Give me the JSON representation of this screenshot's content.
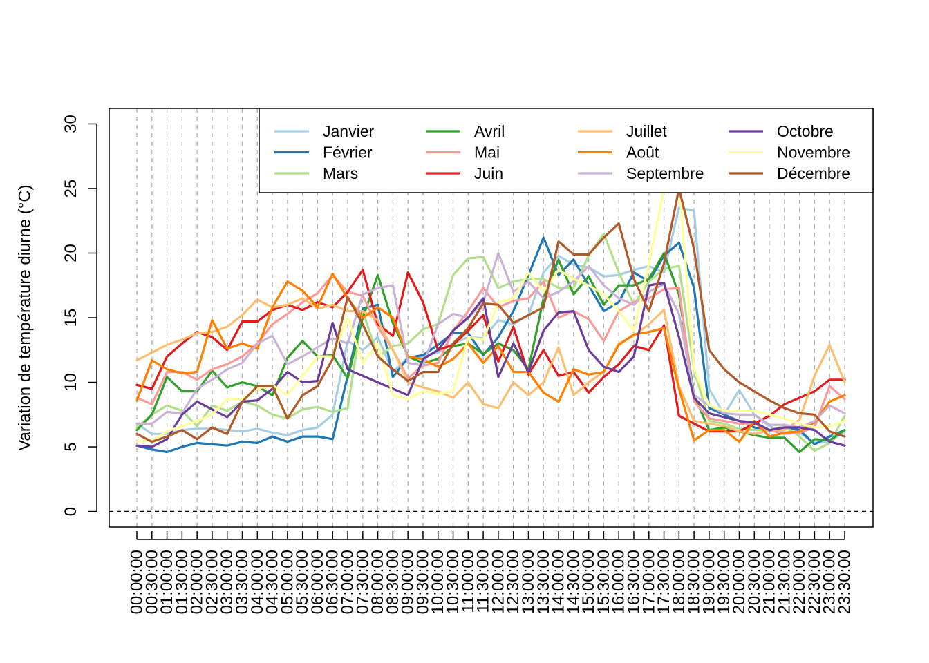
{
  "chart_data": {
    "type": "line",
    "ylabel": "Variation de température diurne (°C)",
    "xlabel": "",
    "ylim": [
      -1.2,
      31.2
    ],
    "yticks": [
      0,
      5,
      10,
      15,
      20,
      25,
      30
    ],
    "reference_line": 0,
    "grid": "vertical-dashed",
    "legend_position": "top-right",
    "categories": [
      "00:00:00",
      "00:30:00",
      "01:00:00",
      "01:30:00",
      "02:00:00",
      "02:30:00",
      "03:00:00",
      "03:30:00",
      "04:00:00",
      "04:30:00",
      "05:00:00",
      "05:30:00",
      "06:00:00",
      "06:30:00",
      "07:00:00",
      "07:30:00",
      "08:00:00",
      "08:30:00",
      "09:00:00",
      "09:30:00",
      "10:00:00",
      "10:30:00",
      "11:00:00",
      "11:30:00",
      "12:00:00",
      "12:30:00",
      "13:00:00",
      "13:30:00",
      "14:00:00",
      "14:30:00",
      "15:00:00",
      "15:30:00",
      "16:00:00",
      "16:30:00",
      "17:00:00",
      "17:30:00",
      "18:00:00",
      "18:30:00",
      "19:00:00",
      "19:30:00",
      "20:00:00",
      "20:30:00",
      "21:00:00",
      "21:30:00",
      "22:00:00",
      "22:30:00",
      "23:00:00",
      "23:30:00"
    ],
    "series": [
      {
        "name": "Janvier",
        "color": "#A6CEE3",
        "values": [
          6.8,
          6.0,
          6.0,
          6.3,
          6.4,
          6.4,
          6.3,
          6.2,
          6.4,
          6.1,
          5.9,
          6.3,
          6.5,
          7.5,
          13.2,
          12.5,
          13.5,
          10.8,
          11.9,
          12.0,
          12.3,
          13.0,
          13.5,
          13.4,
          14.8,
          14.5,
          15.2,
          18.5,
          19.8,
          19.1,
          18.9,
          18.2,
          18.3,
          18.7,
          19.0,
          18.5,
          23.5,
          23.3,
          9.5,
          7.5,
          9.4,
          7.5,
          6.6,
          6.1,
          6.1,
          5.3,
          5.4,
          6.2
        ]
      },
      {
        "name": "Février",
        "color": "#1F78B4",
        "values": [
          5.1,
          4.8,
          4.6,
          5.0,
          5.3,
          5.2,
          5.1,
          5.4,
          5.3,
          5.8,
          5.4,
          5.8,
          5.8,
          5.6,
          10.5,
          15.7,
          16.0,
          10.4,
          11.9,
          12.1,
          12.9,
          13.8,
          13.8,
          12.1,
          13.5,
          15.5,
          18.3,
          21.2,
          18.3,
          19.5,
          17.5,
          15.5,
          16.2,
          18.5,
          17.8,
          19.8,
          20.8,
          17.3,
          8.0,
          7.5,
          7.0,
          6.5,
          6.2,
          6.5,
          6.3,
          5.2,
          5.8,
          6.3
        ]
      },
      {
        "name": "Mars",
        "color": "#B2DF8A",
        "values": [
          6.5,
          7.5,
          8.2,
          7.8,
          6.6,
          8.2,
          7.8,
          8.5,
          8.2,
          7.5,
          7.2,
          7.9,
          8.1,
          7.7,
          8.0,
          15.5,
          12.0,
          12.8,
          13.0,
          14.1,
          14.5,
          18.3,
          19.6,
          19.7,
          17.3,
          17.8,
          18.0,
          18.0,
          17.3,
          17.3,
          19.8,
          21.5,
          18.5,
          16.0,
          17.8,
          18.8,
          19.0,
          11.0,
          7.0,
          6.8,
          6.4,
          6.3,
          6.3,
          6.6,
          5.8,
          4.7,
          5.3,
          7.4
        ]
      },
      {
        "name": "Avril",
        "color": "#33A02C",
        "values": [
          6.3,
          7.5,
          10.4,
          9.3,
          9.3,
          10.9,
          9.6,
          10.0,
          9.7,
          9.0,
          11.9,
          13.2,
          12.0,
          12.1,
          10.3,
          15.0,
          18.3,
          14.6,
          12.0,
          11.5,
          11.8,
          12.8,
          13.0,
          12.2,
          13.0,
          12.5,
          11.0,
          16.5,
          19.5,
          16.8,
          18.2,
          16.0,
          17.5,
          17.5,
          18.0,
          20.0,
          16.8,
          9.0,
          6.3,
          6.5,
          6.2,
          5.9,
          5.7,
          5.7,
          4.6,
          5.6,
          5.5,
          6.3
        ]
      },
      {
        "name": "Mai",
        "color": "#FB9A99",
        "values": [
          8.8,
          8.3,
          10.8,
          10.8,
          10.2,
          11.0,
          11.4,
          12.0,
          13.0,
          14.5,
          15.3,
          16.2,
          16.9,
          18.3,
          17.0,
          16.7,
          14.3,
          12.5,
          10.3,
          11.3,
          11.5,
          14.0,
          15.5,
          17.3,
          15.8,
          16.3,
          16.5,
          17.8,
          15.0,
          15.5,
          14.9,
          13.2,
          15.5,
          16.2,
          16.5,
          17.2,
          17.3,
          8.5,
          7.2,
          7.0,
          6.8,
          6.8,
          6.3,
          6.0,
          6.1,
          6.5,
          9.7,
          8.7
        ]
      },
      {
        "name": "Juin",
        "color": "#E31A1C",
        "values": [
          9.8,
          9.5,
          12.0,
          13.0,
          13.9,
          13.5,
          12.5,
          14.7,
          14.7,
          15.6,
          16.0,
          15.6,
          16.2,
          15.8,
          17.0,
          18.7,
          14.5,
          13.6,
          18.5,
          16.2,
          12.5,
          12.9,
          14.0,
          15.2,
          11.6,
          14.3,
          10.6,
          12.5,
          10.5,
          10.8,
          9.2,
          10.4,
          11.4,
          12.8,
          12.5,
          14.4,
          7.4,
          6.8,
          6.2,
          6.2,
          6.2,
          6.8,
          7.4,
          8.3,
          8.8,
          9.3,
          10.2,
          10.2
        ]
      },
      {
        "name": "Juillet",
        "color": "#FDBF6F",
        "values": [
          11.7,
          12.3,
          12.9,
          13.3,
          13.8,
          13.9,
          14.3,
          15.2,
          16.4,
          15.8,
          16.0,
          16.5,
          15.7,
          16.0,
          15.5,
          15.5,
          14.8,
          12.5,
          10.0,
          9.6,
          9.3,
          8.8,
          10.0,
          8.3,
          8.0,
          10.0,
          9.0,
          10.0,
          12.7,
          9.0,
          10.0,
          10.8,
          13.0,
          13.6,
          14.5,
          15.6,
          9.7,
          7.0,
          6.8,
          6.6,
          6.2,
          6.0,
          6.3,
          6.3,
          7.1,
          10.5,
          12.9,
          10.0
        ]
      },
      {
        "name": "Août",
        "color": "#FF7F00",
        "values": [
          8.6,
          11.7,
          11.0,
          10.7,
          10.8,
          14.8,
          12.6,
          13.0,
          12.6,
          15.8,
          17.8,
          17.1,
          15.8,
          18.4,
          16.5,
          15.0,
          15.8,
          15.0,
          12.0,
          11.8,
          11.2,
          11.8,
          13.0,
          11.5,
          12.8,
          10.8,
          10.8,
          9.2,
          8.5,
          11.0,
          10.6,
          10.8,
          12.9,
          13.7,
          13.9,
          14.2,
          9.5,
          5.5,
          6.3,
          6.3,
          5.4,
          7.0,
          5.8,
          6.1,
          6.2,
          6.9,
          8.5,
          9.0
        ]
      },
      {
        "name": "Septembre",
        "color": "#CAB2D6",
        "values": [
          6.8,
          6.8,
          7.7,
          7.6,
          9.5,
          10.2,
          11.0,
          11.5,
          13.0,
          13.6,
          11.4,
          12.0,
          12.7,
          13.4,
          13.0,
          16.8,
          17.3,
          17.5,
          11.5,
          11.3,
          14.5,
          15.3,
          15.0,
          16.2,
          20.0,
          17.0,
          17.8,
          16.5,
          17.0,
          17.8,
          19.0,
          17.5,
          16.5,
          16.0,
          17.0,
          17.6,
          15.3,
          9.0,
          8.2,
          7.6,
          7.5,
          7.5,
          6.7,
          6.7,
          6.5,
          7.0,
          8.2,
          7.6
        ]
      },
      {
        "name": "Octobre",
        "color": "#6A3D9A",
        "values": [
          5.1,
          5.0,
          5.6,
          7.5,
          8.5,
          7.9,
          7.3,
          8.5,
          8.6,
          9.5,
          10.8,
          10.0,
          10.1,
          14.6,
          11.0,
          10.5,
          10.0,
          9.5,
          9.0,
          11.8,
          12.5,
          14.0,
          15.0,
          16.5,
          10.4,
          13.0,
          10.8,
          14.0,
          15.4,
          15.5,
          12.5,
          11.2,
          10.8,
          12.0,
          17.5,
          17.7,
          13.5,
          8.8,
          7.6,
          7.3,
          7.0,
          6.9,
          6.3,
          6.5,
          6.5,
          6.3,
          5.4,
          5.1
        ]
      },
      {
        "name": "Novembre",
        "color": "#FFFF99",
        "values": [
          5.4,
          5.5,
          6.2,
          6.6,
          7.0,
          7.5,
          8.7,
          8.7,
          9.5,
          9.8,
          9.0,
          10.5,
          12.0,
          12.0,
          15.0,
          11.5,
          13.0,
          9.0,
          8.7,
          9.3,
          9.1,
          9.3,
          13.5,
          13.3,
          16.2,
          16.5,
          18.5,
          17.0,
          18.7,
          18.0,
          17.5,
          16.8,
          15.5,
          14.0,
          19.2,
          25.0,
          25.5,
          11.0,
          8.2,
          7.8,
          7.8,
          7.8,
          7.5,
          7.2,
          6.8,
          6.5,
          6.6,
          7.0
        ]
      },
      {
        "name": "Décembre",
        "color": "#B15928",
        "values": [
          6.0,
          5.4,
          5.8,
          6.3,
          5.6,
          6.5,
          6.0,
          8.5,
          9.7,
          9.7,
          7.2,
          9.0,
          9.7,
          11.8,
          16.6,
          14.5,
          12.0,
          11.0,
          10.1,
          10.8,
          10.8,
          13.0,
          14.2,
          16.1,
          16.0,
          14.6,
          15.2,
          15.8,
          20.9,
          19.9,
          19.9,
          21.2,
          22.3,
          18.0,
          15.5,
          19.2,
          25.0,
          20.3,
          12.5,
          11.0,
          10.0,
          9.3,
          8.6,
          8.0,
          7.6,
          7.5,
          6.2,
          5.8
        ]
      }
    ]
  }
}
